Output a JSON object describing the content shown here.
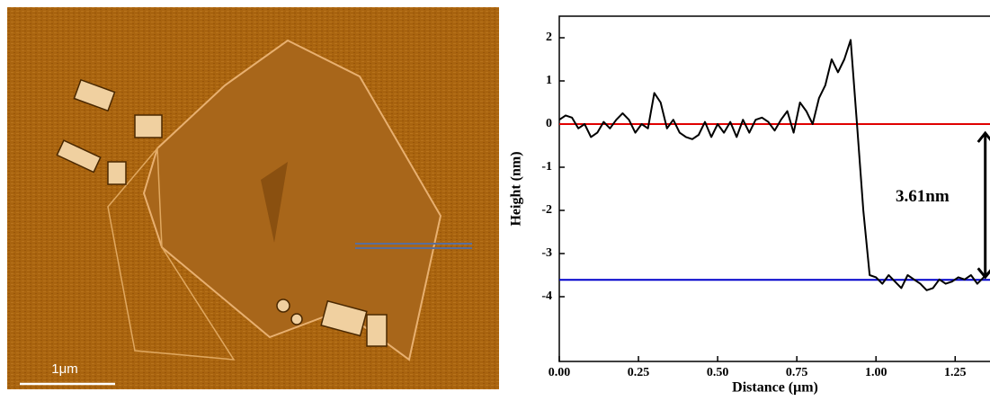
{
  "image": {
    "scale_bar_label": "1μm"
  },
  "chart_data": {
    "type": "line",
    "x_label": "Distance (μm)",
    "y_label": "Height (nm)",
    "xlim": [
      0,
      1.36
    ],
    "ylim": [
      -5.5,
      2.5
    ],
    "xticks": [
      {
        "value": 0,
        "label": "0.00"
      },
      {
        "value": 0.25,
        "label": "0.25"
      },
      {
        "value": 0.5,
        "label": "0.50"
      },
      {
        "value": 0.75,
        "label": "0.75"
      },
      {
        "value": 1,
        "label": "1.00"
      },
      {
        "value": 1.25,
        "label": "1.25"
      }
    ],
    "yticks": [
      2,
      1,
      0,
      -1,
      -2,
      -3,
      -4
    ],
    "color": "#000000",
    "x": [
      0,
      0.02,
      0.04,
      0.06,
      0.08,
      0.1,
      0.12,
      0.14,
      0.16,
      0.18,
      0.2,
      0.22,
      0.24,
      0.26,
      0.28,
      0.3,
      0.32,
      0.34,
      0.36,
      0.38,
      0.4,
      0.42,
      0.44,
      0.46,
      0.48,
      0.5,
      0.52,
      0.54,
      0.56,
      0.58,
      0.6,
      0.62,
      0.64,
      0.66,
      0.68,
      0.7,
      0.72,
      0.74,
      0.76,
      0.78,
      0.8,
      0.82,
      0.84,
      0.86,
      0.88,
      0.9,
      0.92,
      0.94,
      0.96,
      0.98,
      1,
      1.02,
      1.04,
      1.06,
      1.08,
      1.1,
      1.12,
      1.14,
      1.16,
      1.18,
      1.2,
      1.22,
      1.24,
      1.26,
      1.28,
      1.3,
      1.32,
      1.34,
      1.36
    ],
    "values": [
      0.1,
      0.2,
      0.15,
      -0.1,
      0,
      -0.3,
      -0.2,
      0.05,
      -0.1,
      0.1,
      0.25,
      0.1,
      -0.2,
      0,
      -0.1,
      0.72,
      0.5,
      -0.1,
      0.1,
      -0.2,
      -0.3,
      -0.35,
      -0.25,
      0.05,
      -0.3,
      0,
      -0.2,
      0.05,
      -0.3,
      0.1,
      -0.2,
      0.1,
      0.15,
      0.05,
      -0.15,
      0.1,
      0.3,
      -0.2,
      0.5,
      0.3,
      0,
      0.6,
      0.9,
      1.5,
      1.2,
      1.5,
      1.95,
      0,
      -2,
      -3.5,
      -3.55,
      -3.7,
      -3.5,
      -3.65,
      -3.8,
      -3.5,
      -3.6,
      -3.7,
      -3.85,
      -3.8,
      -3.6,
      -3.7,
      -3.65,
      -3.55,
      -3.6,
      -3.5,
      -3.7,
      -3.55,
      -3.4
    ],
    "reference_lines": [
      {
        "value": 0,
        "color": "#e00000"
      },
      {
        "value": -3.61,
        "color": "#0000cc"
      }
    ],
    "annotation": {
      "text": "3.61nm",
      "x": 1.345,
      "y_from": 0,
      "y_to": -3.61
    }
  }
}
